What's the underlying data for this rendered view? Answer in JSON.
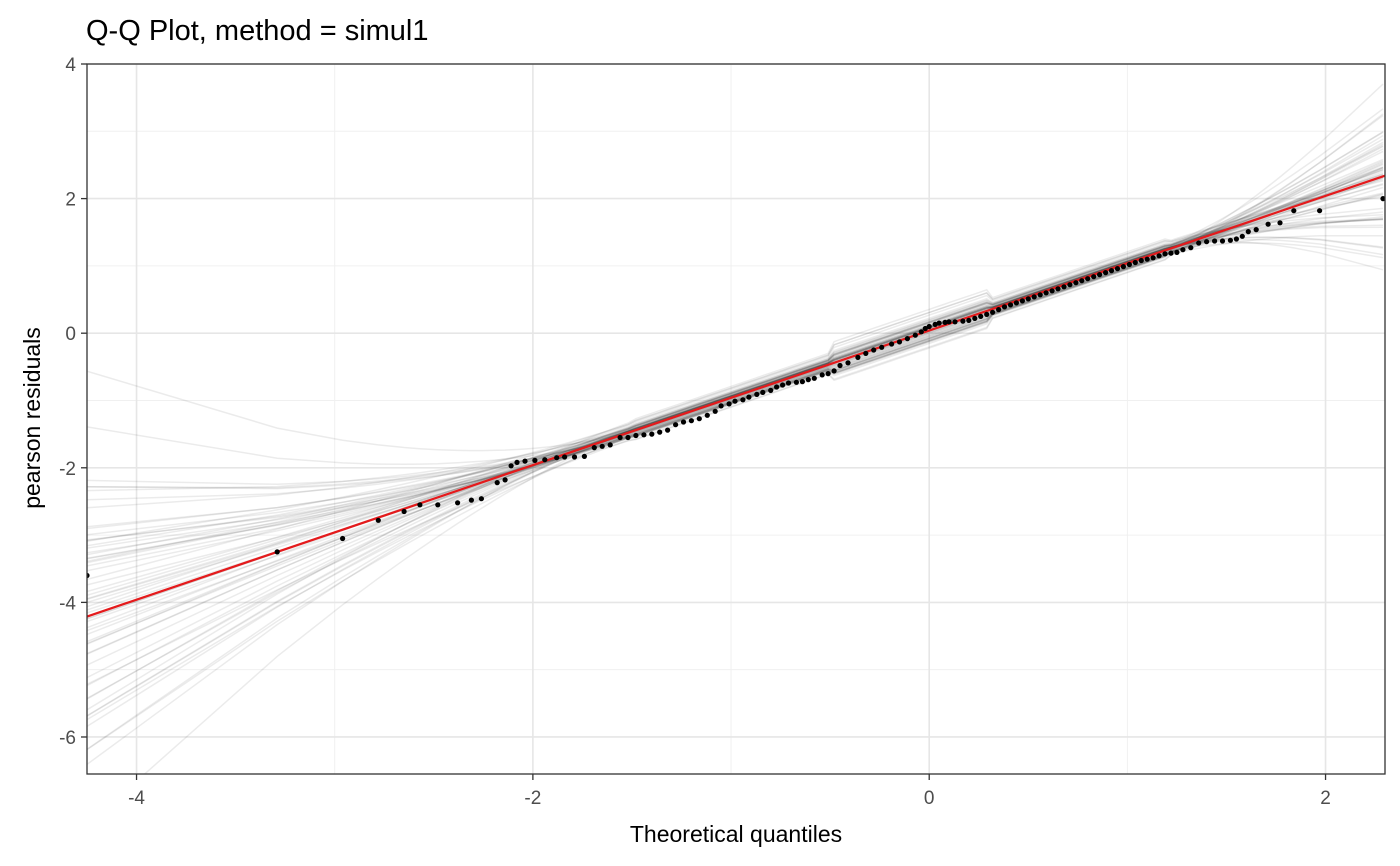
{
  "chart_data": {
    "type": "scatter",
    "title": "Q-Q Plot, method = simul1",
    "xlabel": "Theoretical quantiles",
    "ylabel": "pearson residuals",
    "xlim": [
      -4.25,
      2.3
    ],
    "ylim": [
      -6.55,
      4.0
    ],
    "x_ticks": [
      -4,
      -2,
      0,
      2
    ],
    "x_tick_labels": [
      "-4",
      "-2",
      "0",
      "2"
    ],
    "y_ticks": [
      -6,
      -4,
      -2,
      0,
      2,
      4
    ],
    "y_tick_labels": [
      "-6",
      "-4",
      "-2",
      "0",
      "2",
      "4"
    ],
    "grid": true,
    "legend": "none",
    "reference_line": {
      "intercept": 0.04,
      "slope": 1.0,
      "color": "#e41a1c"
    },
    "simulation_envelope": {
      "count": 60,
      "color": "#000000",
      "alpha": 0.08
    },
    "points": [
      [
        -4.25,
        -3.6
      ],
      [
        -3.29,
        -3.25
      ],
      [
        -2.96,
        -3.05
      ],
      [
        -2.78,
        -2.78
      ],
      [
        -2.65,
        -2.65
      ],
      [
        -2.57,
        -2.55
      ],
      [
        -2.48,
        -2.55
      ],
      [
        -2.38,
        -2.52
      ],
      [
        -2.31,
        -2.48
      ],
      [
        -2.26,
        -2.46
      ],
      [
        -2.18,
        -2.22
      ],
      [
        -2.14,
        -2.18
      ],
      [
        -2.11,
        -1.97
      ],
      [
        -2.08,
        -1.92
      ],
      [
        -2.04,
        -1.9
      ],
      [
        -1.99,
        -1.89
      ],
      [
        -1.94,
        -1.88
      ],
      [
        -1.88,
        -1.85
      ],
      [
        -1.84,
        -1.84
      ],
      [
        -1.79,
        -1.84
      ],
      [
        -1.74,
        -1.83
      ],
      [
        -1.69,
        -1.7
      ],
      [
        -1.65,
        -1.68
      ],
      [
        -1.61,
        -1.66
      ],
      [
        -1.56,
        -1.55
      ],
      [
        -1.52,
        -1.55
      ],
      [
        -1.48,
        -1.52
      ],
      [
        -1.44,
        -1.51
      ],
      [
        -1.4,
        -1.5
      ],
      [
        -1.36,
        -1.47
      ],
      [
        -1.32,
        -1.44
      ],
      [
        -1.28,
        -1.36
      ],
      [
        -1.24,
        -1.32
      ],
      [
        -1.2,
        -1.3
      ],
      [
        -1.16,
        -1.27
      ],
      [
        -1.12,
        -1.22
      ],
      [
        -1.08,
        -1.16
      ],
      [
        -1.05,
        -1.08
      ],
      [
        -1.01,
        -1.05
      ],
      [
        -0.98,
        -1.01
      ],
      [
        -0.94,
        -0.99
      ],
      [
        -0.91,
        -0.95
      ],
      [
        -0.87,
        -0.91
      ],
      [
        -0.84,
        -0.88
      ],
      [
        -0.8,
        -0.85
      ],
      [
        -0.77,
        -0.8
      ],
      [
        -0.74,
        -0.77
      ],
      [
        -0.71,
        -0.74
      ],
      [
        -0.67,
        -0.73
      ],
      [
        -0.64,
        -0.72
      ],
      [
        -0.61,
        -0.69
      ],
      [
        -0.58,
        -0.67
      ],
      [
        -0.54,
        -0.62
      ],
      [
        -0.51,
        -0.6
      ],
      [
        -0.48,
        -0.56
      ],
      [
        -0.45,
        -0.48
      ],
      [
        -0.41,
        -0.44
      ],
      [
        -0.36,
        -0.36
      ],
      [
        -0.32,
        -0.3
      ],
      [
        -0.28,
        -0.25
      ],
      [
        -0.24,
        -0.21
      ],
      [
        -0.19,
        -0.16
      ],
      [
        -0.15,
        -0.13
      ],
      [
        -0.11,
        -0.08
      ],
      [
        -0.07,
        -0.03
      ],
      [
        -0.04,
        0.02
      ],
      [
        -0.02,
        0.07
      ],
      [
        0.0,
        0.1
      ],
      [
        0.03,
        0.13
      ],
      [
        0.05,
        0.15
      ],
      [
        0.08,
        0.16
      ],
      [
        0.1,
        0.17
      ],
      [
        0.13,
        0.17
      ],
      [
        0.17,
        0.18
      ],
      [
        0.2,
        0.19
      ],
      [
        0.23,
        0.22
      ],
      [
        0.26,
        0.25
      ],
      [
        0.29,
        0.28
      ],
      [
        0.32,
        0.31
      ],
      [
        0.35,
        0.35
      ],
      [
        0.38,
        0.39
      ],
      [
        0.41,
        0.42
      ],
      [
        0.44,
        0.45
      ],
      [
        0.47,
        0.48
      ],
      [
        0.5,
        0.51
      ],
      [
        0.53,
        0.54
      ],
      [
        0.56,
        0.57
      ],
      [
        0.59,
        0.6
      ],
      [
        0.62,
        0.63
      ],
      [
        0.65,
        0.66
      ],
      [
        0.68,
        0.69
      ],
      [
        0.71,
        0.72
      ],
      [
        0.74,
        0.75
      ],
      [
        0.77,
        0.78
      ],
      [
        0.8,
        0.81
      ],
      [
        0.83,
        0.84
      ],
      [
        0.86,
        0.87
      ],
      [
        0.89,
        0.9
      ],
      [
        0.92,
        0.93
      ],
      [
        0.95,
        0.96
      ],
      [
        0.98,
        0.99
      ],
      [
        1.01,
        1.02
      ],
      [
        1.04,
        1.05
      ],
      [
        1.07,
        1.08
      ],
      [
        1.1,
        1.1
      ],
      [
        1.13,
        1.12
      ],
      [
        1.16,
        1.15
      ],
      [
        1.19,
        1.18
      ],
      [
        1.22,
        1.19
      ],
      [
        1.25,
        1.2
      ],
      [
        1.28,
        1.24
      ],
      [
        1.32,
        1.27
      ],
      [
        1.36,
        1.34
      ],
      [
        1.4,
        1.36
      ],
      [
        1.44,
        1.37
      ],
      [
        1.48,
        1.37
      ],
      [
        1.52,
        1.38
      ],
      [
        1.55,
        1.4
      ],
      [
        1.58,
        1.44
      ],
      [
        1.61,
        1.51
      ],
      [
        1.65,
        1.54
      ],
      [
        1.71,
        1.62
      ],
      [
        1.77,
        1.64
      ],
      [
        1.84,
        1.82
      ],
      [
        1.97,
        1.82
      ],
      [
        2.29,
        2.0
      ]
    ]
  }
}
